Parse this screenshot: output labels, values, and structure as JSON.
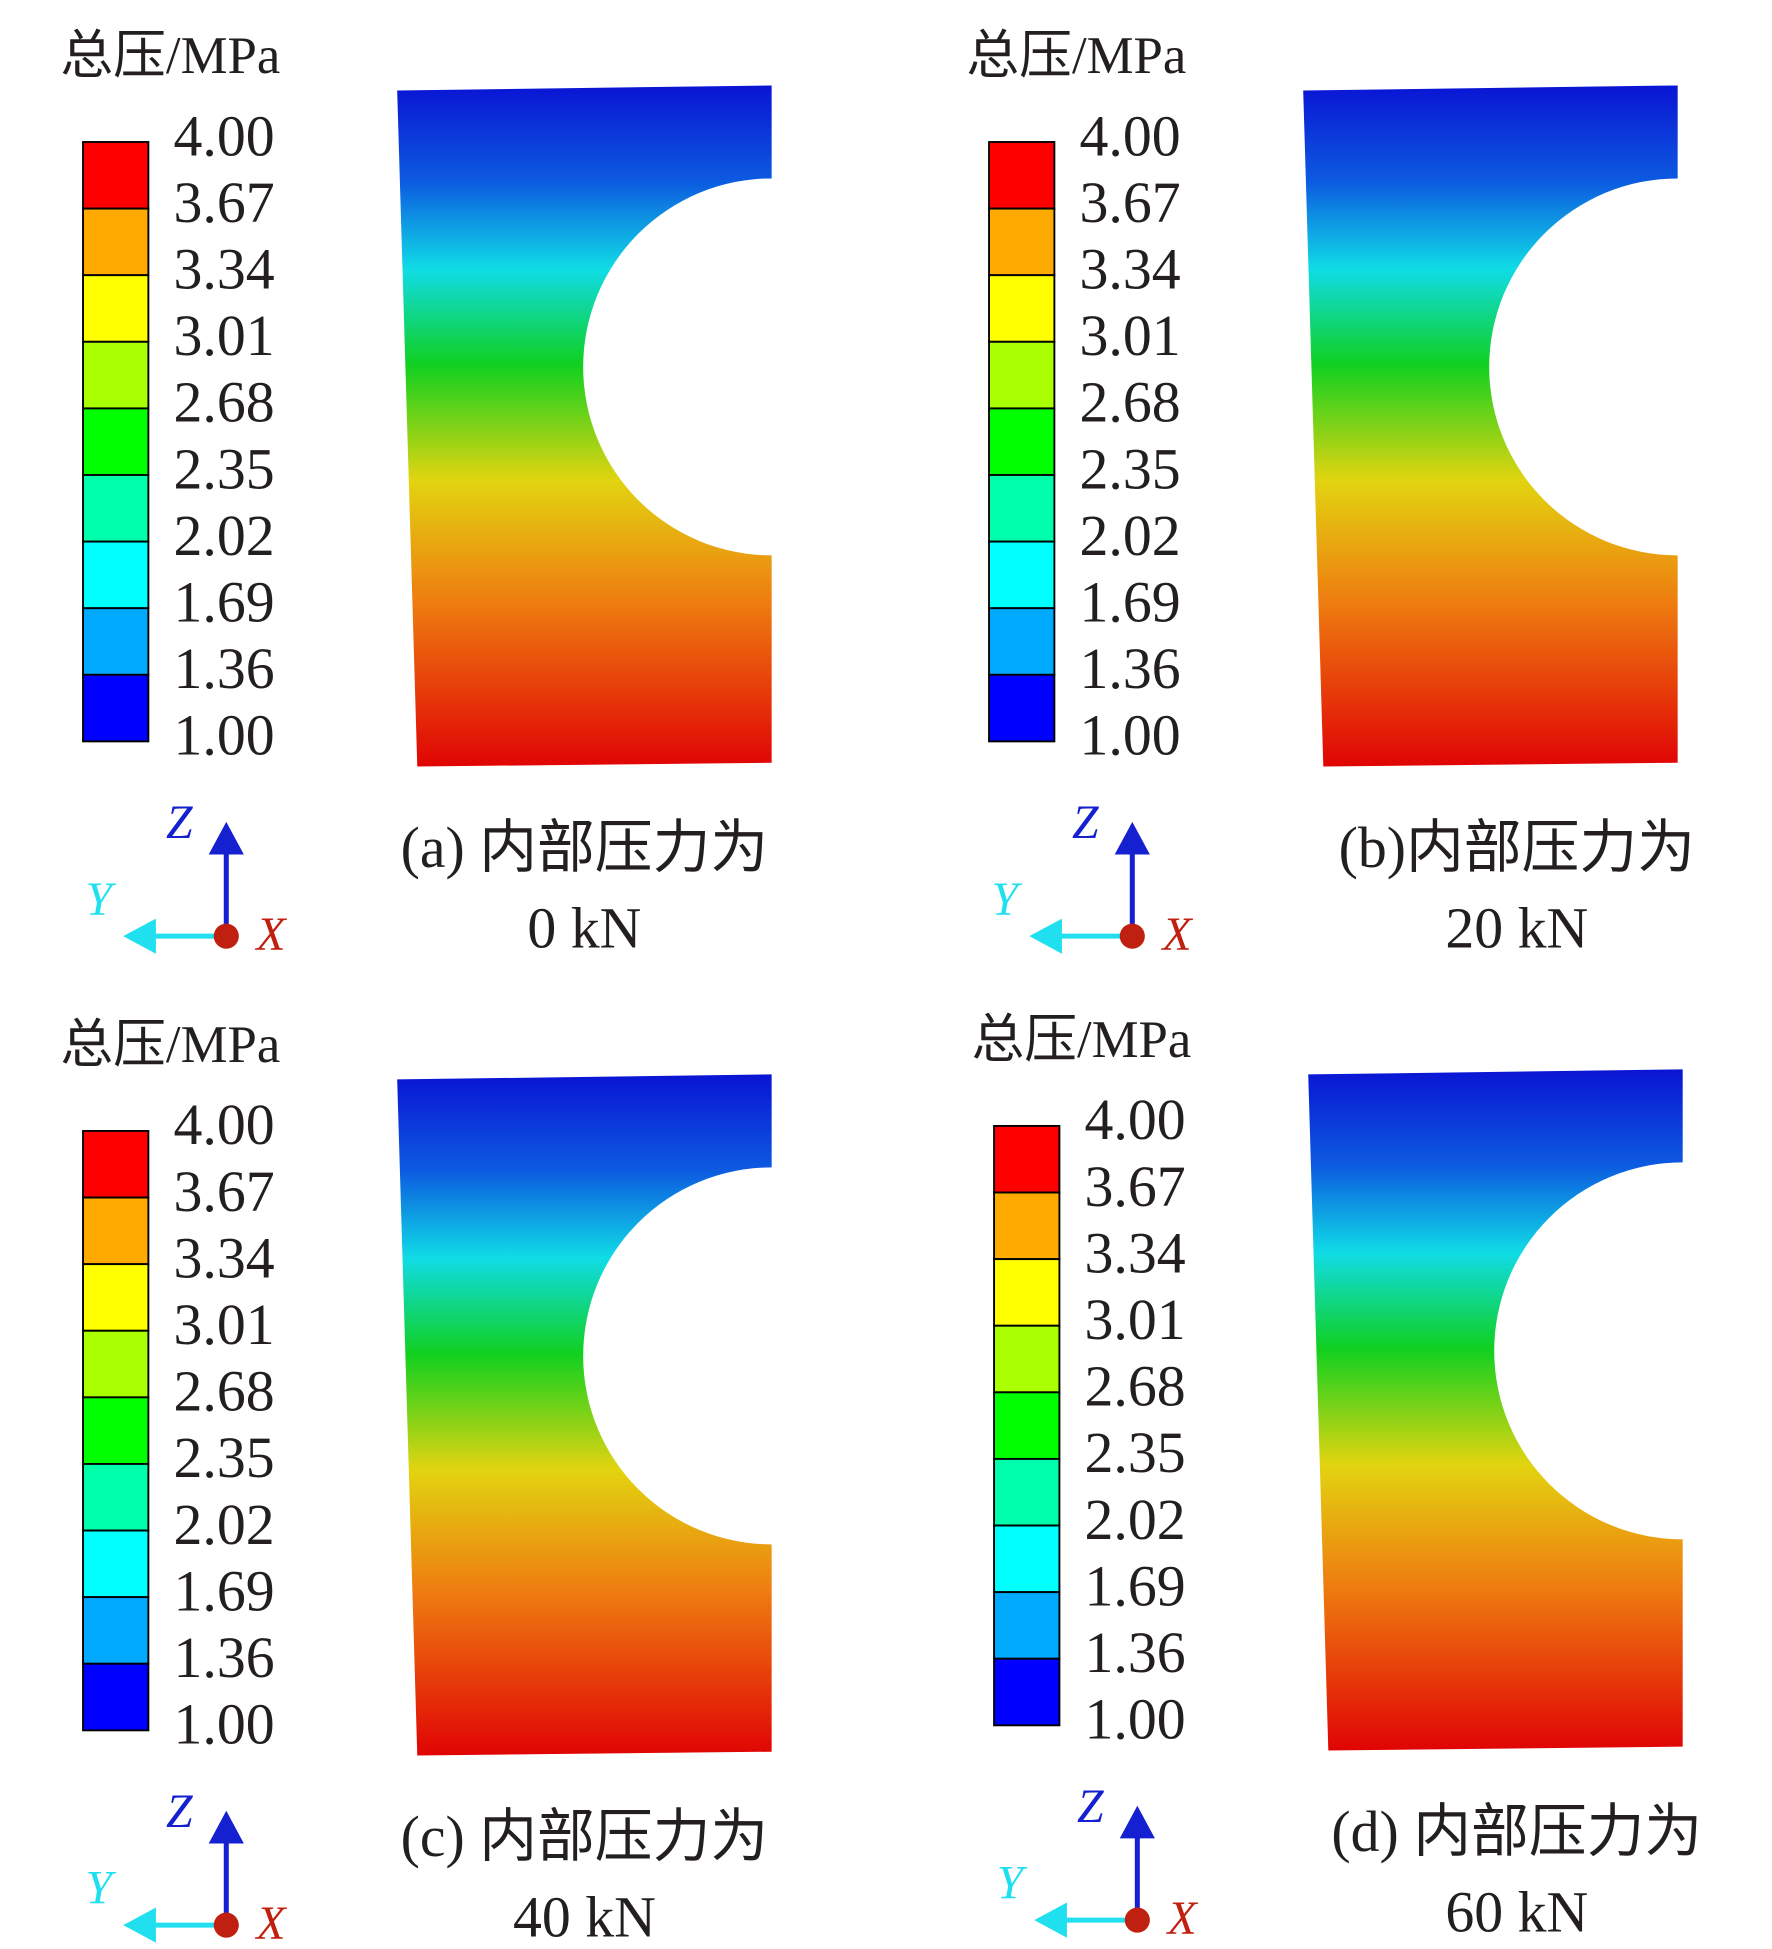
{
  "legend_title": "总压/MPa",
  "levels": [
    "4.00",
    "3.67",
    "3.34",
    "3.01",
    "2.68",
    "2.35",
    "2.02",
    "1.69",
    "1.36",
    "1.00"
  ],
  "band_colors": [
    "#ff0000",
    "#ffaa00",
    "#ffff00",
    "#aaff00",
    "#00ff00",
    "#00ffaa",
    "#00ffff",
    "#00aaff",
    "#0000ff"
  ],
  "axes": {
    "z": "Z",
    "y": "Y",
    "x": "X"
  },
  "panels": [
    {
      "caption": [
        "(a) 内部压力为",
        "0 kN"
      ]
    },
    {
      "caption": [
        "(b)内部压力为",
        "20 kN"
      ]
    },
    {
      "caption": [
        "(c) 内部压力为",
        "40 kN"
      ]
    },
    {
      "caption": [
        "(d) 内部压力为",
        "60 kN"
      ]
    }
  ]
}
